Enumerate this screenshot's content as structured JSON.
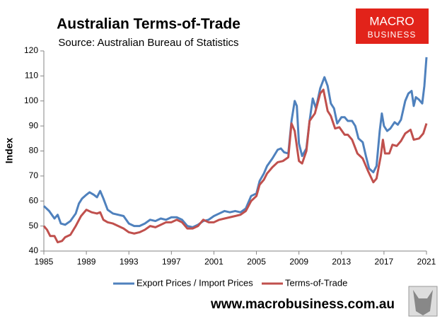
{
  "chart_data": {
    "type": "line",
    "title": "Australian Terms-of-Trade",
    "subtitle": "Source: Australian Bureau of Statistics",
    "y_label": "Index",
    "logo": [
      "MACRO",
      "BUSINESS"
    ],
    "website": "www.macrobusiness.com.au",
    "xlim": [
      1985,
      2021
    ],
    "xticks": [
      1985,
      1989,
      1993,
      1997,
      2001,
      2005,
      2009,
      2013,
      2017,
      2021
    ],
    "ylim": [
      40,
      120
    ],
    "yticks": [
      40,
      50,
      60,
      70,
      80,
      90,
      100,
      110,
      120
    ],
    "grid": false,
    "legend": "bottom",
    "series": [
      {
        "name": "Export Prices / Import Prices",
        "color": "#4f81bd",
        "x": [
          1985,
          1985.5,
          1986,
          1986.3,
          1986.6,
          1987,
          1987.5,
          1988,
          1988.3,
          1988.6,
          1989,
          1989.3,
          1989.7,
          1990,
          1990.3,
          1990.6,
          1991,
          1991.5,
          1992,
          1992.5,
          1993,
          1993.5,
          1994,
          1994.5,
          1995,
          1995.5,
          1996,
          1996.5,
          1997,
          1997.5,
          1998,
          1998.5,
          1999,
          1999.5,
          2000,
          2000.5,
          2001,
          2001.5,
          2002,
          2002.5,
          2003,
          2003.5,
          2004,
          2004.5,
          2005,
          2005.3,
          2005.7,
          2006,
          2006.5,
          2007,
          2007.3,
          2007.6,
          2008,
          2008.3,
          2008.6,
          2008.8,
          2009,
          2009.3,
          2009.7,
          2010,
          2010.3,
          2010.6,
          2011,
          2011.4,
          2011.7,
          2012,
          2012.3,
          2012.6,
          2013,
          2013.3,
          2013.6,
          2014,
          2014.3,
          2014.6,
          2015,
          2015.3,
          2015.6,
          2016,
          2016.3,
          2016.6,
          2016.8,
          2017,
          2017.3,
          2017.6,
          2018,
          2018.3,
          2018.6,
          2019,
          2019.3,
          2019.6,
          2019.8,
          2020,
          2020.3,
          2020.6,
          2020.8,
          2021
        ],
        "values": [
          58,
          56,
          53,
          54.5,
          51,
          50.5,
          52,
          55,
          59,
          61,
          62.5,
          63.5,
          62.5,
          61.5,
          64,
          61,
          56.5,
          55,
          54.5,
          54,
          51,
          50,
          50,
          51,
          52.5,
          52,
          53,
          52.5,
          53.5,
          53.5,
          52.5,
          50,
          49.5,
          50.5,
          52,
          52.5,
          54,
          55,
          56,
          55.5,
          56,
          55.5,
          57,
          62,
          63,
          68,
          71,
          74,
          77,
          80.5,
          81,
          79.5,
          79,
          92,
          100,
          98,
          83,
          78,
          81,
          92,
          101,
          97,
          105,
          109.5,
          106,
          99,
          97,
          91,
          93.5,
          93.5,
          92,
          92,
          90,
          85,
          83.5,
          78,
          73,
          71.5,
          74,
          88,
          95,
          90,
          88,
          89,
          91.5,
          90.5,
          92.5,
          100,
          103,
          104,
          98,
          101.5,
          100.5,
          99,
          106,
          117.5
        ]
      },
      {
        "name": "Terms-of-Trade",
        "color": "#c0504d",
        "x": [
          1985,
          1985.3,
          1985.6,
          1986,
          1986.3,
          1986.7,
          1987,
          1987.5,
          1988,
          1988.5,
          1989,
          1989.5,
          1990,
          1990.3,
          1990.6,
          1991,
          1991.5,
          1992,
          1992.5,
          1993,
          1993.5,
          1994,
          1994.5,
          1995,
          1995.5,
          1996,
          1996.5,
          1997,
          1997.5,
          1998,
          1998.5,
          1999,
          1999.5,
          2000,
          2000.5,
          2001,
          2001.5,
          2002,
          2002.5,
          2003,
          2003.5,
          2004,
          2004.5,
          2005,
          2005.3,
          2005.7,
          2006,
          2006.5,
          2007,
          2007.5,
          2008,
          2008.3,
          2008.6,
          2009,
          2009.3,
          2009.7,
          2010,
          2010.5,
          2011,
          2011.3,
          2011.7,
          2012,
          2012.4,
          2012.8,
          2013.3,
          2013.6,
          2014,
          2014.5,
          2015,
          2015.5,
          2016,
          2016.3,
          2016.7,
          2016.9,
          2017.1,
          2017.5,
          2017.8,
          2018.2,
          2018.6,
          2019,
          2019.5,
          2019.8,
          2020.3,
          2020.7,
          2021
        ],
        "values": [
          50,
          48.5,
          46,
          46,
          43.5,
          44,
          45.5,
          46.5,
          50,
          54,
          56.5,
          55.5,
          55,
          55.5,
          52.5,
          51.5,
          51,
          50,
          49,
          47.5,
          47,
          47.5,
          48.5,
          50,
          49.5,
          50.5,
          51.5,
          51.5,
          52.5,
          51.5,
          49,
          49,
          50,
          52.5,
          51.5,
          51.5,
          52.5,
          53,
          53.5,
          54,
          54.5,
          56,
          60,
          62,
          66.5,
          68.5,
          71,
          73.5,
          75.5,
          76,
          77.5,
          91,
          88,
          76,
          75,
          80,
          92,
          95,
          103,
          104.5,
          96,
          94,
          89,
          89.5,
          86.5,
          86.5,
          84.5,
          79,
          77,
          72,
          67.5,
          69,
          78,
          84.5,
          79,
          79,
          82.5,
          82,
          84,
          87,
          88.5,
          84.5,
          85,
          87,
          91
        ]
      }
    ]
  }
}
